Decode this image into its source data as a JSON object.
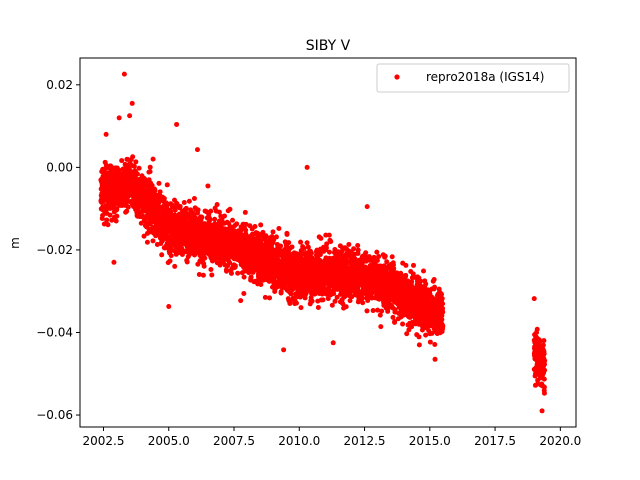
{
  "chart_data": {
    "type": "scatter",
    "title": "SIBY V",
    "xlabel": "",
    "ylabel": "m",
    "xlim": [
      2001.6,
      2020.6
    ],
    "ylim": [
      -0.0629,
      0.0265
    ],
    "xticks": [
      2002.5,
      2005.0,
      2007.5,
      2010.0,
      2012.5,
      2015.0,
      2017.5,
      2020.0
    ],
    "xtick_labels": [
      "2002.5",
      "2005.0",
      "2007.5",
      "2010.0",
      "2012.5",
      "2015.0",
      "2017.5",
      "2020.0"
    ],
    "yticks": [
      0.02,
      0.0,
      -0.02,
      -0.04,
      -0.06
    ],
    "ytick_labels": [
      "0.02",
      "0.00",
      "−0.02",
      "−0.04",
      "−0.06"
    ],
    "grid": false,
    "legend": "top-right",
    "series": [
      {
        "name": "repro2018a (IGS14)",
        "color": "#ff0000",
        "marker": "circle",
        "segments": [
          {
            "x_start": 2002.4,
            "x_end": 2015.5,
            "trend": [
              [
                2002.4,
                -0.006
              ],
              [
                2003.5,
                -0.004
              ],
              [
                2005.0,
                -0.015
              ],
              [
                2007.5,
                -0.019
              ],
              [
                2010.0,
                -0.026
              ],
              [
                2012.5,
                -0.026
              ],
              [
                2014.0,
                -0.031
              ],
              [
                2015.5,
                -0.036
              ]
            ],
            "spread": 0.0045
          },
          {
            "x_start": 2019.0,
            "x_end": 2019.4,
            "trend": [
              [
                2019.0,
                -0.045
              ],
              [
                2019.4,
                -0.048
              ]
            ],
            "spread": 0.0045
          }
        ],
        "outliers": [
          [
            2003.3,
            0.0226
          ],
          [
            2003.6,
            0.0155
          ],
          [
            2005.3,
            0.0104
          ],
          [
            2006.1,
            0.0043
          ],
          [
            2003.1,
            0.012
          ],
          [
            2003.5,
            0.0125
          ],
          [
            2002.6,
            0.008
          ],
          [
            2002.9,
            -0.023
          ],
          [
            2008.7,
            -0.0315
          ],
          [
            2009.4,
            -0.0442
          ],
          [
            2011.3,
            -0.0425
          ],
          [
            2014.6,
            -0.043
          ],
          [
            2015.2,
            -0.0465
          ],
          [
            2019.0,
            -0.0318
          ],
          [
            2019.3,
            -0.059
          ],
          [
            2010.3,
            0.0
          ],
          [
            2012.6,
            -0.0095
          ],
          [
            2004.4,
            0.002
          ],
          [
            2005.0,
            -0.0337
          ],
          [
            2006.5,
            -0.0045
          ]
        ]
      }
    ]
  }
}
